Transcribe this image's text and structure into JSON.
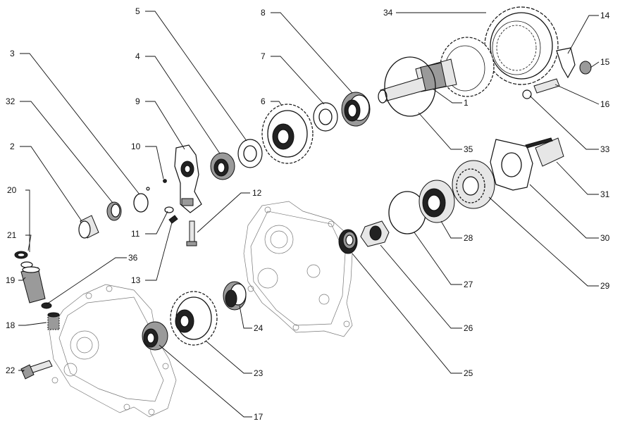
{
  "diagram": {
    "callouts": [
      {
        "id": "c34",
        "label": "34"
      },
      {
        "id": "c14",
        "label": "14"
      },
      {
        "id": "c15",
        "label": "15"
      },
      {
        "id": "c16",
        "label": "16"
      },
      {
        "id": "c33",
        "label": "33"
      },
      {
        "id": "c31",
        "label": "31"
      },
      {
        "id": "c30",
        "label": "30"
      },
      {
        "id": "c29",
        "label": "29"
      },
      {
        "id": "c28",
        "label": "28"
      },
      {
        "id": "c27",
        "label": "27"
      },
      {
        "id": "c26",
        "label": "26"
      },
      {
        "id": "c25",
        "label": "25"
      },
      {
        "id": "c35",
        "label": "35"
      },
      {
        "id": "c1",
        "label": "1"
      },
      {
        "id": "c8",
        "label": "8"
      },
      {
        "id": "c7",
        "label": "7"
      },
      {
        "id": "c6",
        "label": "6"
      },
      {
        "id": "c5",
        "label": "5"
      },
      {
        "id": "c4",
        "label": "4"
      },
      {
        "id": "c9",
        "label": "9"
      },
      {
        "id": "c10",
        "label": "10"
      },
      {
        "id": "c11",
        "label": "11"
      },
      {
        "id": "c12",
        "label": "12"
      },
      {
        "id": "c13",
        "label": "13"
      },
      {
        "id": "c3",
        "label": "3"
      },
      {
        "id": "c32",
        "label": "32"
      },
      {
        "id": "c2",
        "label": "2"
      },
      {
        "id": "c20",
        "label": "20"
      },
      {
        "id": "c21",
        "label": "21"
      },
      {
        "id": "c19",
        "label": "19"
      },
      {
        "id": "c36",
        "label": "36"
      },
      {
        "id": "c18",
        "label": "18"
      },
      {
        "id": "c22",
        "label": "22"
      },
      {
        "id": "c17",
        "label": "17"
      },
      {
        "id": "c23",
        "label": "23"
      },
      {
        "id": "c24",
        "label": "24"
      }
    ]
  }
}
